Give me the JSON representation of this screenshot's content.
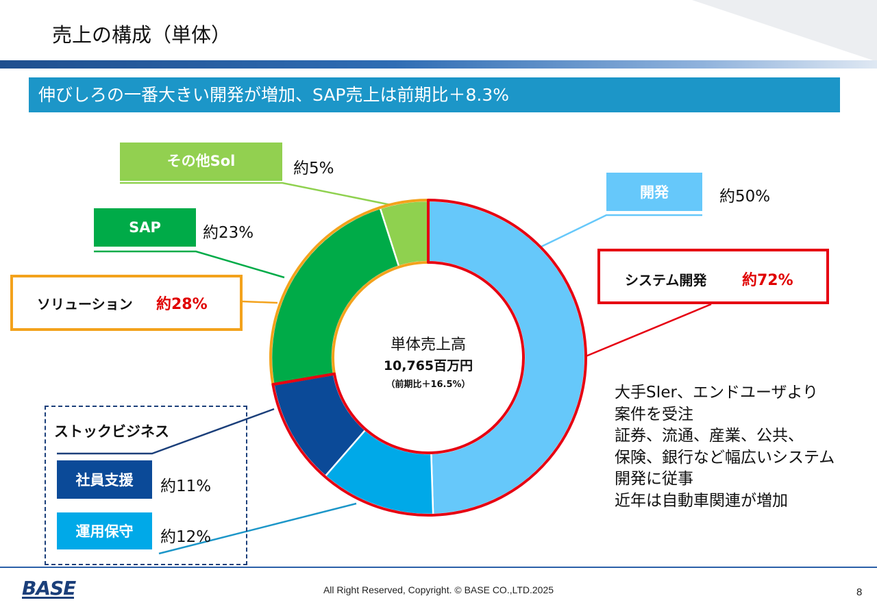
{
  "page": {
    "title": "売上の構成（単体）",
    "banner": "伸びしろの一番大きい開発が増加、SAP売上は前期比＋8.3%",
    "copyright": "All Right Reserved, Copyright. © BASE CO.,LTD.2025",
    "page_number": "8",
    "logo_text": "BASE"
  },
  "center": {
    "label": "単体売上高",
    "value": "10,765百万円",
    "growth": "（前期比＋16.5%）"
  },
  "labels": {
    "sonota": {
      "name": "その他Sol",
      "pct": "約5%"
    },
    "sap": {
      "name": "SAP",
      "pct": "約23%"
    },
    "solution": {
      "name": "ソリューション",
      "pct": "約28%"
    },
    "kaihatsu": {
      "name": "開発",
      "pct": "約50%"
    },
    "system": {
      "name": "システム開発",
      "pct": "約72%"
    },
    "stock": {
      "name": "ストックビジネス"
    },
    "shain": {
      "name": "社員支援",
      "pct": "約11%"
    },
    "unyo": {
      "name": "運用保守",
      "pct": "約12%"
    }
  },
  "description": [
    "大手SIer、エンドユーザより",
    "案件を受注",
    "証券、流通、産業、公共、",
    "保険、銀行など幅広いシステム",
    "開発に従事",
    "近年は自動車関連が増加"
  ],
  "colors": {
    "kaihatsu": "#66c8fa",
    "unyo": "#00a9e8",
    "shain": "#0b4a98",
    "sap": "#00ab48",
    "sonota": "#8fd14f",
    "solution_outline": "#f3a21c",
    "system_outline": "#e60012",
    "banner": "#1c96c8"
  },
  "chart_data": {
    "type": "pie",
    "variant": "donut",
    "segments": [
      {
        "name": "開発",
        "value": 50,
        "label": "約50%"
      },
      {
        "name": "運用保守",
        "value": 12,
        "label": "約12%"
      },
      {
        "name": "社員支援",
        "value": 11,
        "label": "約11%"
      },
      {
        "name": "SAP",
        "value": 23,
        "label": "約23%"
      },
      {
        "name": "その他Sol",
        "value": 5,
        "label": "約5%"
      }
    ],
    "groups": [
      {
        "name": "システム開発",
        "label": "約72%",
        "members": [
          "開発",
          "運用保守",
          "社員支援"
        ]
      },
      {
        "name": "ソリューション",
        "label": "約28%",
        "members": [
          "SAP",
          "その他Sol"
        ]
      },
      {
        "name": "ストックビジネス",
        "members": [
          "社員支援",
          "運用保守"
        ]
      }
    ]
  }
}
